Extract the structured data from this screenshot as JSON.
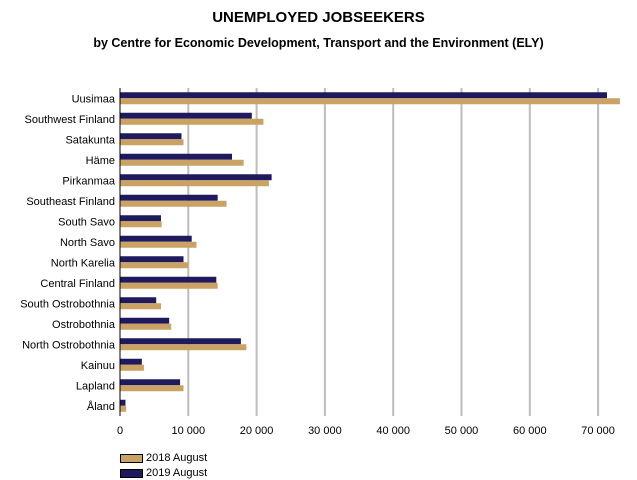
{
  "chart_data": {
    "type": "bar",
    "orientation": "horizontal",
    "title": "UNEMPLOYED JOBSEEKERS",
    "subtitle": "by Centre for Economic Development, Transport and the Environment (ELY)",
    "categories": [
      "Uusimaa",
      "Southwest Finland",
      "Satakunta",
      "Häme",
      "Pirkanmaa",
      "Southeast Finland",
      "South Savo",
      "North Savo",
      "North Karelia",
      "Central Finland",
      "South Ostrobothnia",
      "Ostrobothnia",
      "North Ostrobothnia",
      "Kainuu",
      "Lapland",
      "Åland"
    ],
    "series": [
      {
        "name": "2019 August",
        "color": "#1f1a5e",
        "values": [
          71300,
          19300,
          9000,
          16400,
          22200,
          14300,
          6000,
          10500,
          9300,
          14100,
          5300,
          7200,
          17700,
          3200,
          8800,
          800
        ]
      },
      {
        "name": "2018 August",
        "color": "#c9a264",
        "values": [
          73200,
          21000,
          9300,
          18100,
          21800,
          15600,
          6100,
          11200,
          10000,
          14300,
          6000,
          7500,
          18500,
          3500,
          9300,
          900
        ]
      }
    ],
    "xticks": [
      0,
      10000,
      20000,
      30000,
      40000,
      50000,
      60000,
      70000
    ],
    "xtick_labels": [
      "0",
      "10 000",
      "20 000",
      "30 000",
      "40 000",
      "50 000",
      "60 000",
      "70 000"
    ],
    "xlim": [
      0,
      73500
    ],
    "grid": true,
    "legend_position": "bottom-left"
  },
  "legend": [
    {
      "label": "2018 August",
      "color": "#c9a264"
    },
    {
      "label": "2019 August",
      "color": "#1f1a5e"
    }
  ]
}
